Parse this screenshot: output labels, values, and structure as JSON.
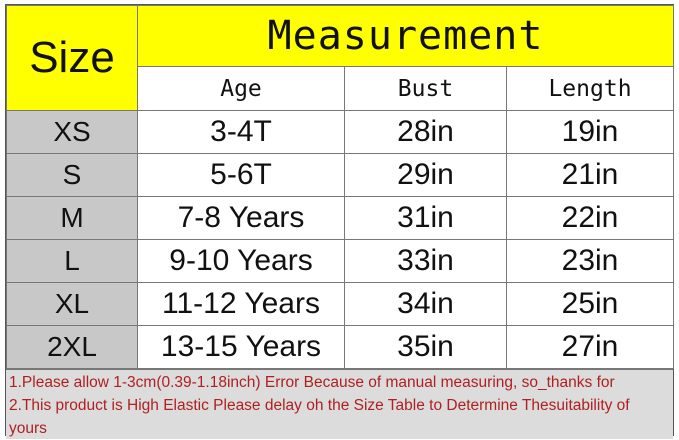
{
  "table": {
    "size_header": "Size",
    "measurement_header": "Measurement",
    "columns": [
      "Age",
      "Bust",
      "Length"
    ],
    "rows": [
      {
        "size": "XS",
        "age": "3-4T",
        "bust": "28in",
        "length": "19in"
      },
      {
        "size": "S",
        "age": "5-6T",
        "bust": "29in",
        "length": "21in"
      },
      {
        "size": "M",
        "age": "7-8 Years",
        "bust": "31in",
        "length": "22in"
      },
      {
        "size": "L",
        "age": "9-10 Years",
        "bust": "33in",
        "length": "23in"
      },
      {
        "size": "XL",
        "age": "11-12 Years",
        "bust": "34in",
        "length": "25in"
      },
      {
        "size": "2XL",
        "age": "13-15 Years",
        "bust": "35in",
        "length": "27in"
      }
    ]
  },
  "notes": [
    "1.Please allow 1-3cm(0.39-1.18inch) Error Because of manual measuring,  so_thanks for",
    "2.This product is High Elastic Please delay oh the Size Table to Determine Thesuitability of yours"
  ],
  "colors": {
    "header": "#ffff00",
    "size_column": "#c8c8c8",
    "notes_text": "#b02020"
  }
}
